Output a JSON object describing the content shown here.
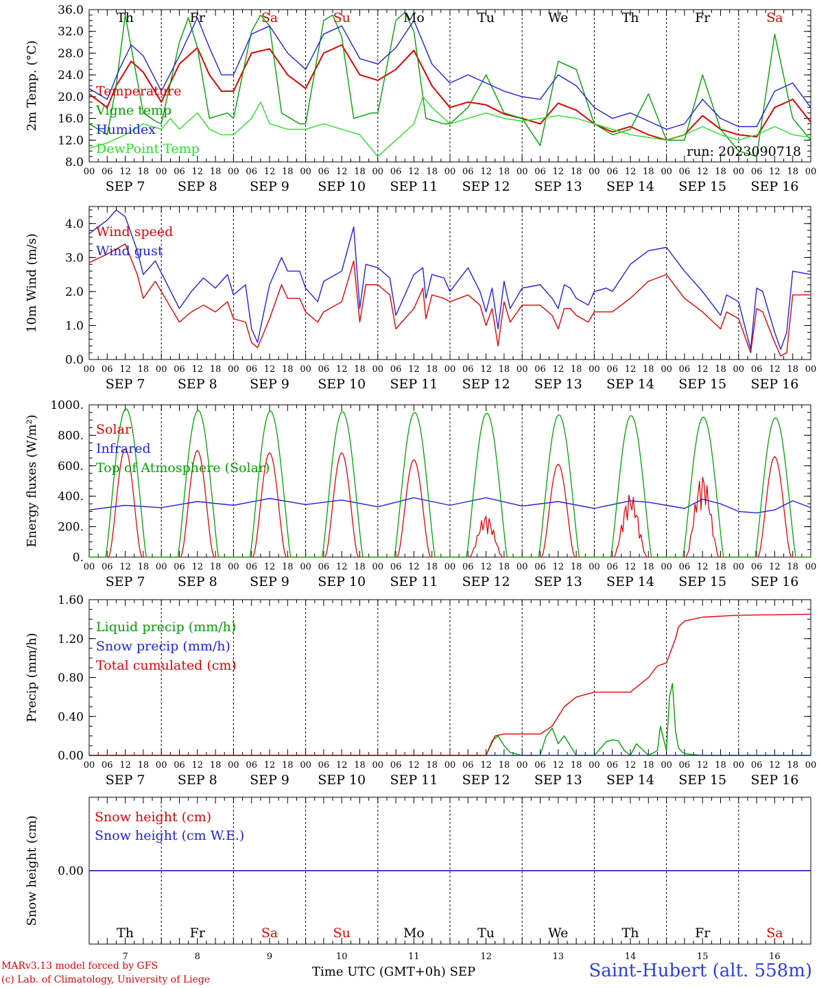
{
  "run_label": "run: 2023090718",
  "days": {
    "names": [
      "Th",
      "Fr",
      "Sa",
      "Su",
      "Mo",
      "Tu",
      "We",
      "Th",
      "Fr",
      "Sa"
    ],
    "weekend": [
      false,
      false,
      true,
      true,
      false,
      false,
      false,
      false,
      false,
      true
    ],
    "dates": [
      "SEP  7",
      "SEP  8",
      "SEP  9",
      "SEP 10",
      "SEP 11",
      "SEP 12",
      "SEP 13",
      "SEP 14",
      "SEP 15",
      "SEP 16"
    ],
    "numbers": [
      "7",
      "8",
      "9",
      "10",
      "11",
      "12",
      "13",
      "14",
      "15",
      "16"
    ],
    "hour_ticks": [
      "00",
      "06",
      "12",
      "18"
    ],
    "last_tick": "00"
  },
  "colors": {
    "red": "#e00000",
    "green": "#00a000",
    "lightgreen": "#28e028",
    "blue": "#2020e0",
    "purple": "#8000a0"
  },
  "footer": {
    "credit_line1": "MARv3.13 model forced by GFS",
    "credit_line2": "(c) Lab. of Climatology, University of Liege",
    "x_axis_title": "Time UTC (GMT+0h) SEP",
    "station": "Saint-Hubert (alt. 558m)"
  },
  "chart_data": [
    {
      "type": "line",
      "ylabel": "2m Temp. (°C)",
      "ylim": [
        8,
        36
      ],
      "yticks": [
        "8.0",
        "12.0",
        "16.0",
        "20.0",
        "24.0",
        "28.0",
        "32.0",
        "36.0"
      ],
      "x_unit": "hours since 2023-09-07 00 UTC",
      "series": [
        {
          "name": "Temperature",
          "color": "red",
          "x": [
            0,
            6,
            9,
            14,
            18,
            24,
            30,
            36,
            40,
            44,
            48,
            54,
            60,
            66,
            72,
            78,
            84,
            90,
            96,
            102,
            108,
            114,
            120,
            126,
            132,
            138,
            144,
            150,
            156,
            162,
            168,
            174,
            180,
            186,
            192,
            198,
            204,
            210,
            216,
            222,
            228,
            234,
            240
          ],
          "y": [
            20.5,
            18,
            22,
            26.5,
            24.5,
            19,
            26,
            29,
            24,
            21,
            21,
            28,
            28.8,
            24,
            21.5,
            28,
            29.5,
            24,
            23,
            25,
            28.5,
            22,
            18,
            19,
            18.5,
            16.8,
            16,
            15,
            18.8,
            17.5,
            15,
            13.5,
            14.5,
            13,
            12,
            13,
            16.5,
            14,
            13,
            12.6,
            18,
            19.5,
            15.3
          ]
        },
        {
          "name": "Vigne temp",
          "color": "green",
          "x": [
            0,
            6,
            9,
            12,
            18,
            22,
            24,
            30,
            33,
            36,
            40,
            46,
            48,
            54,
            57,
            60,
            64,
            70,
            72,
            78,
            81,
            84,
            88,
            94,
            96,
            102,
            105,
            108,
            112,
            118,
            120,
            126,
            132,
            138,
            144,
            150,
            156,
            162,
            168,
            174,
            180,
            186,
            192,
            198,
            204,
            210,
            216,
            222,
            228,
            234,
            240
          ],
          "y": [
            15,
            13,
            22,
            35,
            17,
            15.5,
            15,
            30,
            34.5,
            29,
            16,
            17,
            16,
            32,
            35,
            33,
            17,
            15,
            15,
            34,
            35,
            31,
            16,
            17,
            17,
            34,
            35.5,
            32,
            16,
            15,
            15,
            18,
            24,
            17,
            16,
            11,
            26.5,
            25,
            15,
            13,
            14,
            20.5,
            12,
            12,
            24,
            14,
            10,
            9,
            31.5,
            16,
            12
          ]
        },
        {
          "name": "Humidex",
          "color": "blue",
          "x": [
            0,
            6,
            10,
            14,
            18,
            24,
            30,
            36,
            40,
            44,
            48,
            54,
            60,
            66,
            72,
            78,
            84,
            90,
            96,
            102,
            108,
            114,
            120,
            126,
            132,
            138,
            144,
            150,
            156,
            162,
            168,
            174,
            180,
            186,
            192,
            198,
            204,
            210,
            216,
            222,
            228,
            234,
            240
          ],
          "y": [
            21.5,
            19.5,
            25,
            29.5,
            27.5,
            21,
            27.5,
            34.5,
            29,
            24,
            24,
            31.5,
            33,
            28,
            25,
            31.5,
            33,
            27,
            26,
            29,
            34,
            26,
            22.5,
            24,
            22.5,
            21,
            20,
            19.5,
            24,
            22,
            18,
            16,
            17,
            15.5,
            14,
            15,
            19.5,
            16,
            14.5,
            14.5,
            21,
            22.5,
            18
          ]
        },
        {
          "name": "DewPoint Temp",
          "color": "lightgreen",
          "x": [
            0,
            6,
            12,
            18,
            24,
            27,
            30,
            36,
            40,
            44,
            48,
            54,
            57,
            60,
            66,
            72,
            78,
            84,
            90,
            96,
            102,
            108,
            111,
            114,
            120,
            126,
            132,
            138,
            144,
            150,
            156,
            162,
            168,
            174,
            180,
            186,
            192,
            198,
            204,
            210,
            216,
            222,
            228,
            234,
            240
          ],
          "y": [
            10.5,
            11.5,
            13,
            15,
            14,
            16,
            14,
            17,
            14,
            13,
            13,
            16,
            19,
            15,
            14,
            14,
            15,
            14,
            13,
            9,
            12,
            15,
            20,
            18,
            15,
            16,
            17,
            16,
            15.5,
            16,
            16.5,
            16,
            15,
            14,
            13,
            12.5,
            12,
            13,
            14.5,
            13,
            12,
            13,
            14.5,
            13,
            12.5
          ]
        }
      ]
    },
    {
      "type": "line",
      "ylabel": "10m Wind (m/s)",
      "ylim": [
        0,
        4.5
      ],
      "yticks": [
        "0.0",
        "1.0",
        "2.0",
        "3.0",
        "4.0"
      ],
      "x_unit": "hours since 2023-09-07 00 UTC",
      "series": [
        {
          "name": "Wind speed",
          "color": "red",
          "x": [
            0,
            6,
            12,
            16,
            18,
            22,
            26,
            30,
            34,
            38,
            42,
            46,
            48,
            52,
            54,
            56,
            60,
            64,
            66,
            70,
            72,
            76,
            78,
            84,
            88,
            90,
            92,
            96,
            100,
            102,
            108,
            111,
            112,
            114,
            118,
            120,
            126,
            130,
            132,
            134,
            136,
            138,
            140,
            144,
            150,
            154,
            156,
            158,
            160,
            162,
            166,
            168,
            172,
            174,
            180,
            186,
            192,
            198,
            204,
            210,
            212,
            216,
            220,
            222,
            224,
            228,
            230,
            232,
            234,
            240
          ],
          "y": [
            2.85,
            3.1,
            3.4,
            2.5,
            1.8,
            2.3,
            1.7,
            1.1,
            1.4,
            1.6,
            1.4,
            1.7,
            1.2,
            1.1,
            0.5,
            0.35,
            1.2,
            2.2,
            1.8,
            1.8,
            1.4,
            1.1,
            1.4,
            1.7,
            2.9,
            1.1,
            2.2,
            2.2,
            1.9,
            0.9,
            1.5,
            2.1,
            1.2,
            1.9,
            1.8,
            1.7,
            1.9,
            1.6,
            1.0,
            1.5,
            0.4,
            1.7,
            1.1,
            1.6,
            1.6,
            1.3,
            0.9,
            1.5,
            1.5,
            1.3,
            1.1,
            1.4,
            1.4,
            1.4,
            1.8,
            2.3,
            2.5,
            1.8,
            1.4,
            0.9,
            1.4,
            1.2,
            0.2,
            1.5,
            1.4,
            0.5,
            0.1,
            0.2,
            1.9,
            1.9
          ]
        },
        {
          "name": "Wind gust",
          "color": "blue",
          "x": [
            0,
            6,
            9,
            12,
            16,
            18,
            22,
            26,
            30,
            34,
            38,
            42,
            46,
            48,
            52,
            54,
            56,
            60,
            64,
            66,
            70,
            72,
            76,
            78,
            84,
            88,
            90,
            92,
            96,
            100,
            102,
            108,
            111,
            112,
            114,
            118,
            120,
            126,
            130,
            132,
            134,
            136,
            138,
            140,
            144,
            150,
            154,
            156,
            158,
            160,
            162,
            166,
            168,
            172,
            174,
            180,
            186,
            192,
            198,
            204,
            210,
            212,
            216,
            220,
            222,
            224,
            228,
            230,
            232,
            234,
            240
          ],
          "y": [
            3.7,
            4.1,
            4.4,
            4.2,
            3.2,
            2.5,
            2.9,
            2.2,
            1.5,
            2.0,
            2.4,
            2.1,
            2.5,
            1.9,
            2.2,
            0.9,
            0.5,
            2.2,
            3.0,
            2.6,
            2.6,
            2.1,
            1.7,
            2.3,
            2.6,
            3.9,
            1.5,
            2.8,
            2.7,
            2.4,
            1.3,
            2.5,
            2.7,
            1.8,
            2.5,
            2.4,
            2.0,
            2.7,
            2.0,
            1.4,
            2.1,
            0.9,
            2.3,
            1.5,
            2.1,
            2.2,
            1.8,
            1.5,
            2.2,
            2.1,
            1.8,
            1.6,
            2.0,
            2.1,
            2.0,
            2.8,
            3.2,
            3.3,
            2.6,
            2.0,
            1.3,
            1.9,
            1.7,
            0.3,
            2.1,
            2.0,
            0.8,
            0.3,
            0.8,
            2.6,
            2.5
          ]
        }
      ]
    },
    {
      "type": "line",
      "ylabel": "Energy fluxes (W/m²)",
      "ylim": [
        0,
        1000
      ],
      "yticks": [
        "0.",
        "200.",
        "400.",
        "600.",
        "800.",
        "1000."
      ],
      "x_unit": "hours since 2023-09-07 00 UTC",
      "series": [
        {
          "name": "Solar",
          "color": "red",
          "peaks": [
            710,
            700,
            685,
            685,
            640,
            280,
            610,
            420,
            550,
            660
          ],
          "cloudy_days": [
            5,
            7,
            8
          ]
        },
        {
          "name": "Infrared",
          "color": "blue",
          "x": [
            0,
            12,
            24,
            36,
            48,
            60,
            72,
            84,
            96,
            108,
            120,
            132,
            144,
            156,
            168,
            180,
            186,
            192,
            198,
            204,
            210,
            216,
            222,
            228,
            234,
            240
          ],
          "y": [
            310,
            340,
            325,
            365,
            340,
            385,
            345,
            375,
            330,
            390,
            340,
            390,
            335,
            365,
            320,
            370,
            360,
            340,
            320,
            380,
            350,
            300,
            290,
            310,
            370,
            325
          ]
        },
        {
          "name": "Top of Atmosphere (Solar)",
          "color": "green",
          "peaks": [
            975,
            965,
            960,
            955,
            950,
            945,
            935,
            930,
            920,
            915
          ]
        }
      ]
    },
    {
      "type": "line",
      "ylabel": "Precip (mm/h)",
      "ylim": [
        0,
        1.6
      ],
      "yticks": [
        "0.00",
        "0.40",
        "0.80",
        "1.20",
        "1.60"
      ],
      "x_unit": "hours since 2023-09-07 00 UTC",
      "series": [
        {
          "name": "Liquid precip (mm/h)",
          "color": "green",
          "x": [
            0,
            132,
            134,
            136,
            138,
            140,
            144,
            150,
            152,
            154,
            156,
            158,
            160,
            162,
            166,
            168,
            172,
            174,
            176,
            178,
            180,
            182,
            186,
            189,
            190,
            192,
            193,
            194,
            195,
            196,
            197,
            198,
            200,
            204,
            240
          ],
          "y": [
            0,
            0,
            0.15,
            0.2,
            0.1,
            0.03,
            0,
            0,
            0.2,
            0.28,
            0.12,
            0.2,
            0.1,
            0,
            0,
            0,
            0.14,
            0.16,
            0.15,
            0.05,
            0,
            0.12,
            0,
            0.05,
            0.3,
            0.05,
            0.6,
            0.74,
            0.25,
            0.08,
            0.04,
            0.02,
            0.01,
            0,
            0
          ]
        },
        {
          "name": "Snow precip (mm/h)",
          "color": "blue",
          "x": [
            0,
            240
          ],
          "y": [
            0,
            0
          ]
        },
        {
          "name": "Total cumulated (cm)",
          "color": "red",
          "x": [
            0,
            132,
            135,
            138,
            141,
            150,
            154,
            158,
            162,
            168,
            174,
            180,
            186,
            189,
            192,
            195,
            196,
            198,
            204,
            216,
            240
          ],
          "y": [
            0,
            0,
            0.2,
            0.22,
            0.22,
            0.22,
            0.3,
            0.5,
            0.6,
            0.65,
            0.65,
            0.65,
            0.8,
            0.92,
            0.95,
            1.2,
            1.32,
            1.38,
            1.42,
            1.44,
            1.45
          ]
        }
      ]
    },
    {
      "type": "line",
      "ylabel": "Snow height (cm)",
      "ylim": [
        -1,
        1
      ],
      "yticks": [
        "0.00"
      ],
      "x_unit": "hours since 2023-09-07 00 UTC",
      "series": [
        {
          "name": "Snow height (cm)",
          "color": "red",
          "x": [
            0,
            240
          ],
          "y": [
            0,
            0
          ]
        },
        {
          "name": "Snow height (cm W.E.)",
          "color": "blue",
          "x": [
            0,
            240
          ],
          "y": [
            0,
            0
          ]
        }
      ]
    }
  ]
}
